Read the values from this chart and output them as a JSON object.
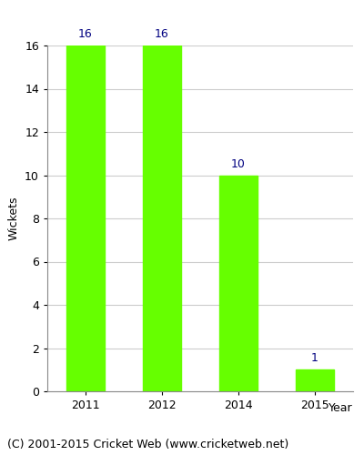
{
  "categories": [
    "2011",
    "2012",
    "2014",
    "2015"
  ],
  "values": [
    16,
    16,
    10,
    1
  ],
  "bar_color": "#66ff00",
  "bar_edgecolor": "#66ff00",
  "label_color": "#000080",
  "xlabel": "Year",
  "ylabel": "Wickets",
  "ylim": [
    0,
    16
  ],
  "yticks": [
    0,
    2,
    4,
    6,
    8,
    10,
    12,
    14,
    16
  ],
  "footnote": "(C) 2001-2015 Cricket Web (www.cricketweb.net)",
  "background_color": "#ffffff",
  "grid_color": "#cccccc",
  "label_fontsize": 9,
  "axis_fontsize": 9,
  "footnote_fontsize": 9,
  "bar_width": 0.5
}
